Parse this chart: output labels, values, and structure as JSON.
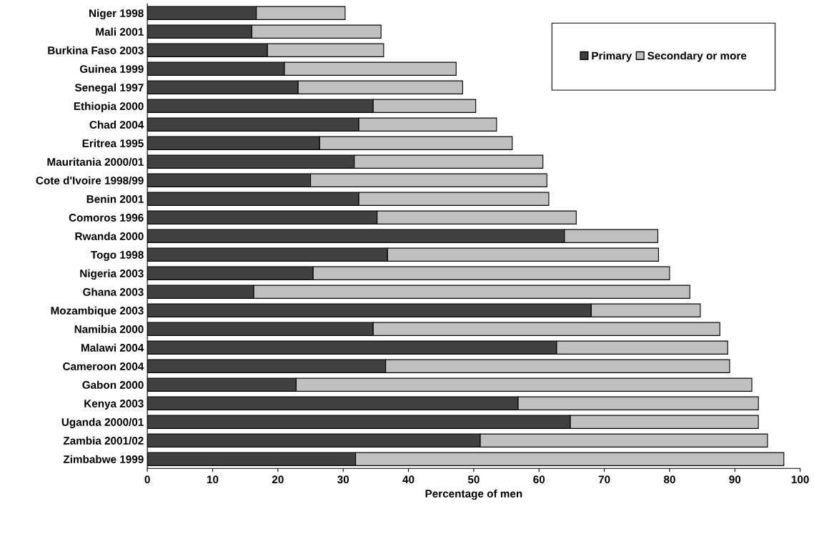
{
  "chart_data": {
    "type": "bar",
    "orientation": "horizontal",
    "stacked": true,
    "xlabel": "Percentage of men",
    "categories": [
      "Niger 1998",
      "Mali 2001",
      "Burkina Faso 2003",
      "Guinea 1999",
      "Senegal 1997",
      "Ethiopia 2000",
      "Chad 2004",
      "Eritrea 1995",
      "Mauritania 2000/01",
      "Cote d'Ivoire 1998/99",
      "Benin 2001",
      "Comoros 1996",
      "Rwanda 2000",
      "Togo 1998",
      "Nigeria 2003",
      "Ghana 2003",
      "Mozambique 2003",
      "Namibia 2000",
      "Malawi 2004",
      "Cameroon 2004",
      "Gabon 2000",
      "Kenya 2003",
      "Uganda 2000/01",
      "Zambia 2001/02",
      "Zimbabwe 1999"
    ],
    "series": [
      {
        "name": "Primary",
        "color": "#404040",
        "values": [
          16.7,
          16.0,
          18.4,
          21.0,
          23.1,
          34.6,
          32.4,
          26.4,
          31.7,
          25.0,
          32.4,
          35.2,
          63.9,
          36.8,
          25.4,
          16.3,
          68.0,
          34.6,
          62.7,
          36.5,
          22.8,
          56.8,
          64.8,
          51.0,
          31.9
        ]
      },
      {
        "name": "Secondary or more",
        "color": "#c0c0c0",
        "values": [
          13.6,
          19.8,
          17.8,
          26.3,
          25.2,
          15.7,
          21.1,
          29.5,
          28.9,
          36.2,
          29.1,
          30.5,
          14.3,
          41.5,
          54.6,
          66.8,
          16.7,
          53.1,
          26.2,
          52.7,
          69.8,
          36.8,
          28.8,
          44.0,
          65.6
        ]
      }
    ],
    "xlim": [
      0,
      100
    ],
    "xticks": [
      0,
      10,
      20,
      30,
      40,
      50,
      60,
      70,
      80,
      90,
      100
    ],
    "grid": false,
    "legend": "top right"
  }
}
